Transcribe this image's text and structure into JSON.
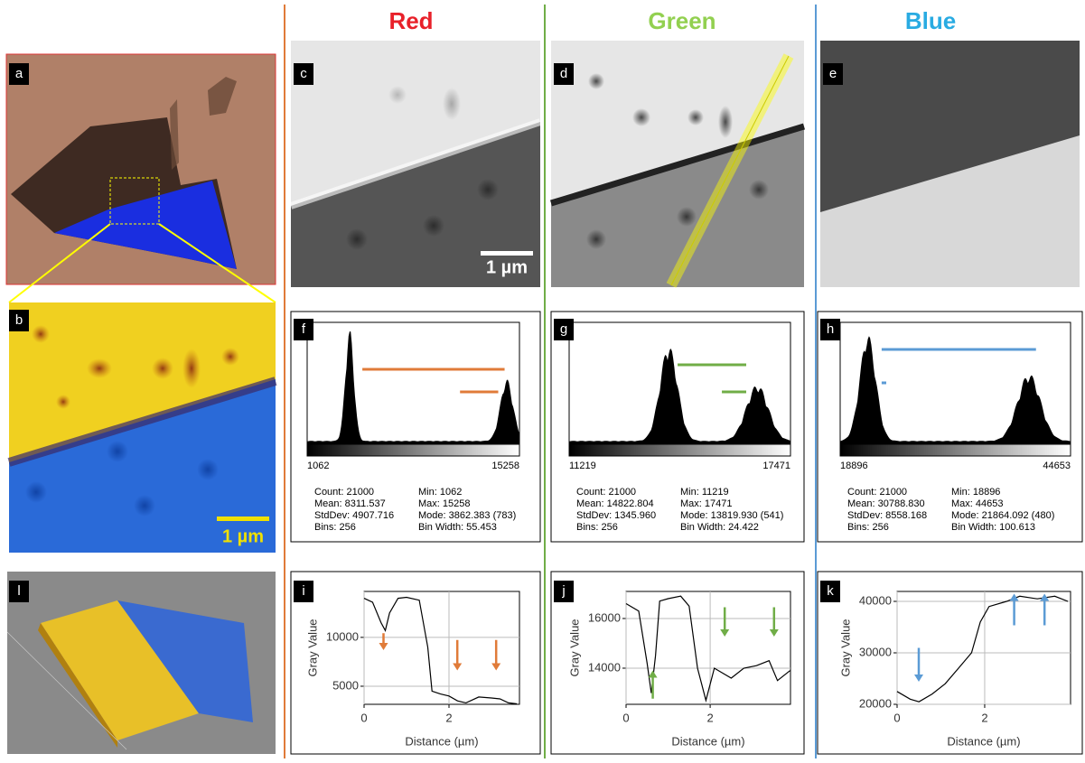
{
  "headers": {
    "red": "Red",
    "green": "Green",
    "blue": "Blue"
  },
  "panel_labels": [
    "a",
    "b",
    "l",
    "c",
    "d",
    "e",
    "f",
    "g",
    "h",
    "i",
    "j",
    "k"
  ],
  "scale_bars": [
    "1 µm",
    "1 µm"
  ],
  "histograms": [
    {
      "min": "1062",
      "max": "15258",
      "stats": [
        [
          "Count: 21000",
          "Mean: 8311.537",
          "StdDev: 4907.716",
          "Bins: 256"
        ],
        [
          "Min: 1062",
          "Max: 15258",
          "Mode: 3862.383 (783)",
          "Bin Width: 55.453"
        ]
      ]
    },
    {
      "min": "11219",
      "max": "17471",
      "stats": [
        [
          "Count: 21000",
          "Mean: 14822.804",
          "StdDev: 1345.960",
          "Bins: 256"
        ],
        [
          "Min: 11219",
          "Max: 17471",
          "Mode: 13819.930 (541)",
          "Bin Width: 24.422"
        ]
      ]
    },
    {
      "min": "18896",
      "max": "44653",
      "stats": [
        [
          "Count: 21000",
          "Mean: 30788.830",
          "StdDev: 8558.168",
          "Bins: 256"
        ],
        [
          "Min: 18896",
          "Max: 44653",
          "Mode: 21864.092 (480)",
          "Bin Width: 100.613"
        ]
      ]
    }
  ],
  "chart_data": [
    {
      "type": "line",
      "x_label": "Distance (µm)",
      "y_label": "Gray Value",
      "color": "#000000",
      "x": [
        0,
        0.2,
        0.4,
        0.5,
        0.6,
        0.8,
        1.0,
        1.3,
        1.5,
        1.6,
        1.8,
        2.0,
        2.2,
        2.4,
        2.7,
        3.0,
        3.2,
        3.4,
        3.6
      ],
      "values": [
        14000,
        13600,
        11500,
        10700,
        12500,
        14000,
        14100,
        13800,
        9000,
        4500,
        4200,
        4000,
        3500,
        3300,
        3900,
        3800,
        3700,
        3300,
        3200
      ],
      "xlim": [
        0,
        3.66
      ],
      "ylim": [
        3150,
        14700
      ],
      "xticks": [
        0,
        2
      ],
      "yticks": [
        5000,
        10000
      ],
      "grid": true
    },
    {
      "type": "line",
      "x_label": "Distance (µm)",
      "y_label": "Gray Value",
      "color": "#000000",
      "x": [
        0,
        0.3,
        0.5,
        0.6,
        0.7,
        0.8,
        1.0,
        1.3,
        1.5,
        1.7,
        1.9,
        2.1,
        2.5,
        2.8,
        3.1,
        3.4,
        3.6,
        3.9
      ],
      "values": [
        16600,
        16300,
        14200,
        13000,
        14500,
        16700,
        16800,
        16900,
        16500,
        14000,
        12700,
        14000,
        13600,
        14000,
        14100,
        14300,
        13500,
        13900
      ],
      "xlim": [
        0,
        3.91
      ],
      "ylim": [
        12545,
        17090
      ],
      "xticks": [
        0,
        2
      ],
      "yticks": [
        14000,
        16000
      ],
      "grid": true
    },
    {
      "type": "line",
      "x_label": "Distance (µm)",
      "y_label": "Gray Value",
      "color": "#000000",
      "x": [
        0,
        0.3,
        0.5,
        0.8,
        1.1,
        1.4,
        1.7,
        1.9,
        2.1,
        2.5,
        2.8,
        3.2,
        3.6,
        3.9
      ],
      "values": [
        22500,
        21000,
        20500,
        22000,
        24000,
        27000,
        30000,
        36000,
        39000,
        40000,
        41000,
        40500,
        41000,
        40000
      ],
      "xlim": [
        0,
        3.96
      ],
      "ylim": [
        20000,
        41930
      ],
      "xticks": [
        0,
        2
      ],
      "yticks": [
        20000,
        30000,
        40000
      ],
      "grid": true
    }
  ]
}
